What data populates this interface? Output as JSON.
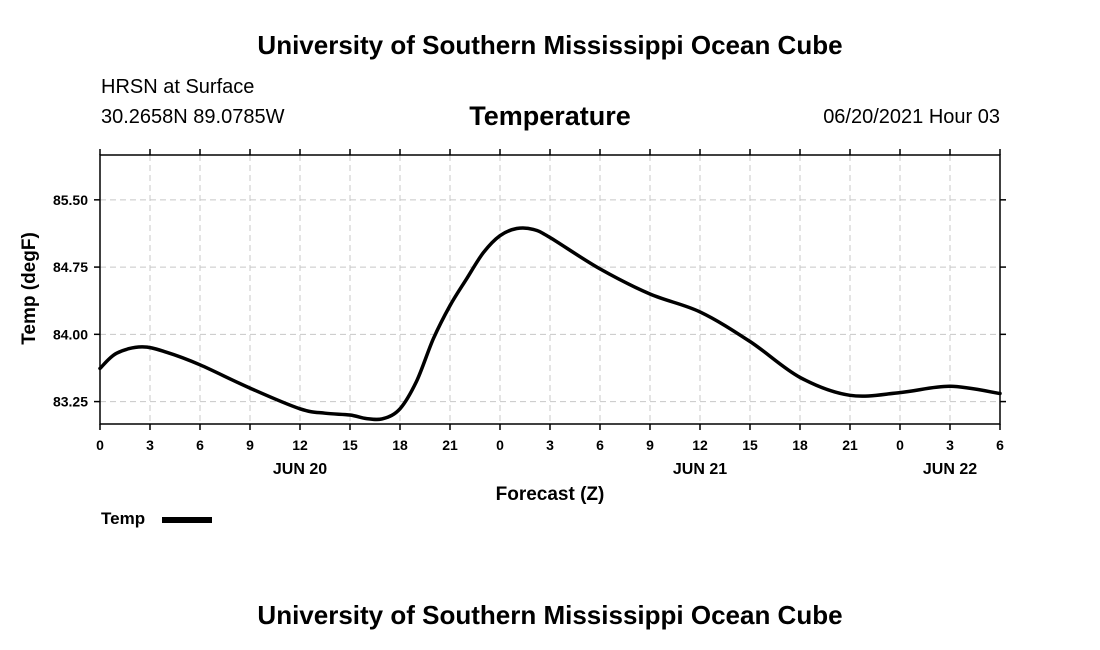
{
  "header": {
    "title": "University of Southern Mississippi Ocean Cube",
    "station": "HRSN at Surface",
    "coords": "30.2658N  89.0785W",
    "chart_title": "Temperature",
    "datetime": "06/20/2021 Hour 03"
  },
  "footer": {
    "title": "University of Southern Mississippi Ocean Cube"
  },
  "legend": {
    "label": "Temp"
  },
  "chart_data": {
    "type": "line",
    "title": "Temperature",
    "xlabel": "Forecast (Z)",
    "ylabel": "Temp (degF)",
    "x_tick_labels": [
      "0",
      "3",
      "6",
      "9",
      "12",
      "15",
      "18",
      "21",
      "0",
      "3",
      "6",
      "9",
      "12",
      "15",
      "18",
      "21",
      "0",
      "3",
      "6"
    ],
    "x_day_labels": [
      {
        "hour": 12,
        "label": "JUN 20"
      },
      {
        "hour": 36,
        "label": "JUN 21"
      },
      {
        "hour": 51,
        "label": "JUN 22"
      }
    ],
    "xlim": [
      0,
      54
    ],
    "ylim": [
      83.0,
      86.0
    ],
    "y_ticks": [
      83.25,
      84.0,
      84.75,
      85.5
    ],
    "y_tick_labels": [
      "83.25",
      "84.00",
      "84.75",
      "85.50"
    ],
    "grid": true,
    "series": [
      {
        "name": "Temp",
        "color": "#000000",
        "x": [
          0,
          1,
          2.5,
          4,
          6,
          9,
          12,
          13.5,
          15,
          16,
          17,
          18,
          19,
          20,
          21,
          22,
          23,
          24,
          25,
          26,
          27,
          30,
          33,
          36,
          39,
          42,
          45,
          48,
          51,
          54
        ],
        "values": [
          83.62,
          83.79,
          83.86,
          83.8,
          83.66,
          83.4,
          83.17,
          83.12,
          83.1,
          83.06,
          83.06,
          83.17,
          83.48,
          83.95,
          84.32,
          84.62,
          84.91,
          85.1,
          85.18,
          85.17,
          85.08,
          84.73,
          84.45,
          84.25,
          83.92,
          83.52,
          83.32,
          83.35,
          83.42,
          83.34
        ]
      }
    ]
  }
}
